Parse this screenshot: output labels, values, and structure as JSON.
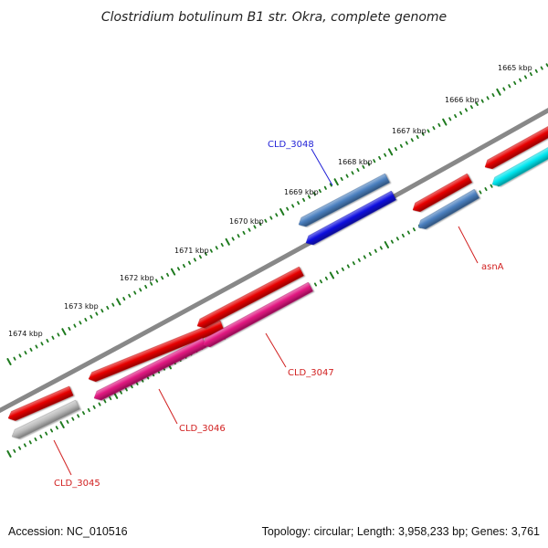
{
  "title": "Clostridium botulinum B1 str. Okra, complete genome",
  "footer": {
    "accession": "Accession: NC_010516",
    "summary": "Topology: circular; Length: 3,958,233 bp; Genes: 3,761"
  },
  "colors": {
    "backbone": "#888888",
    "ruler_tick": "#1e7a1e",
    "label_forward": "#1f1fd6",
    "label_reverse": "#d11f1f"
  },
  "ruler_labels": [
    "1665 kbp",
    "1666 kbp",
    "1667 kbp",
    "1668 kbp",
    "1669 kbp",
    "1670 kbp",
    "1671 kbp",
    "1672 kbp",
    "1673 kbp",
    "1674 kbp"
  ],
  "features": [
    {
      "id": "f1",
      "color": "#e60000"
    },
    {
      "id": "f2",
      "color": "#bbbbbb"
    },
    {
      "id": "f3",
      "color": "#e60000"
    },
    {
      "id": "f4",
      "color": "#e0157f"
    },
    {
      "id": "f5",
      "color": "#e60000"
    },
    {
      "id": "f6",
      "color": "#e0157f"
    },
    {
      "id": "f7",
      "color": "#4a7fbf"
    },
    {
      "id": "f8",
      "color": "#1010e0"
    },
    {
      "id": "f9",
      "color": "#e60000"
    },
    {
      "id": "f10",
      "color": "#4a7fbf"
    },
    {
      "id": "f11",
      "color": "#e60000"
    },
    {
      "id": "f12",
      "color": "#00e5ee"
    }
  ],
  "gene_labels": [
    {
      "text": "CLD_3048",
      "strand": "forward"
    },
    {
      "text": "asnA",
      "strand": "reverse"
    },
    {
      "text": "CLD_3047",
      "strand": "reverse"
    },
    {
      "text": "CLD_3046",
      "strand": "reverse"
    },
    {
      "text": "CLD_3045",
      "strand": "reverse"
    }
  ]
}
